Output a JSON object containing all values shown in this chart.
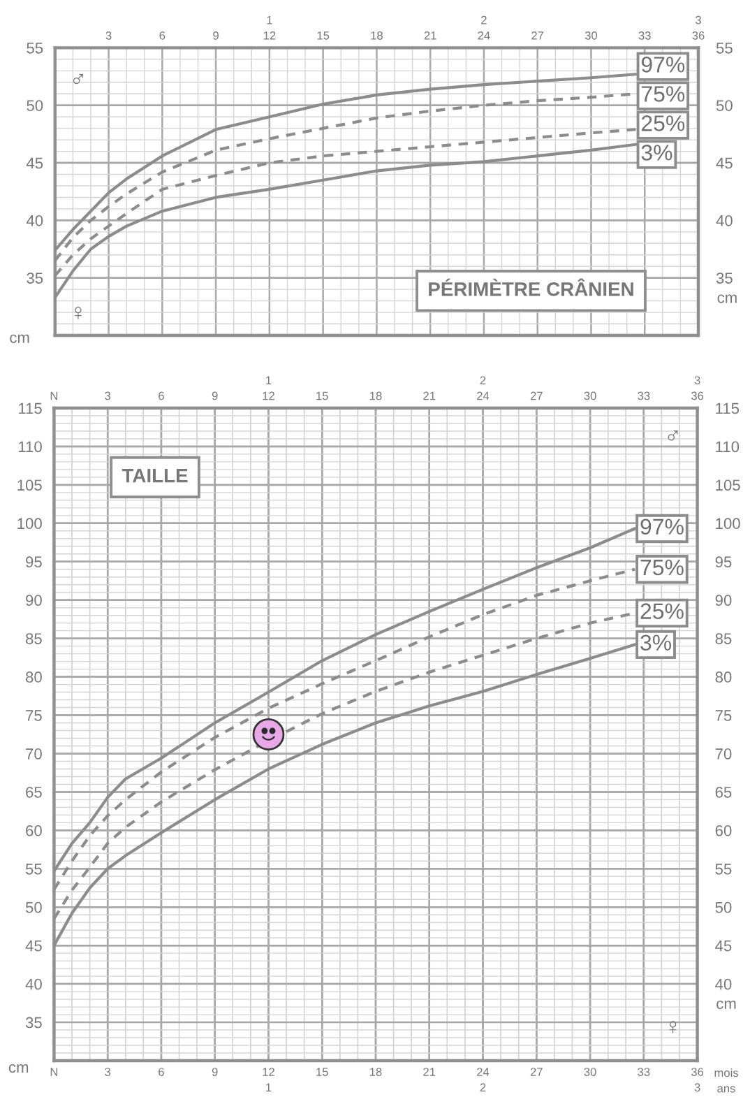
{
  "chart_data": [
    {
      "type": "line",
      "title": "PÉRIMÈTRE CRÂNIEN",
      "ylabel": "cm",
      "y2label": "cm",
      "grid": true,
      "legend": "right",
      "tick_labels": "y",
      "annotations": [
        "♂",
        "♀"
      ],
      "xlim": [
        0,
        36
      ],
      "x2lim": [
        0,
        36
      ],
      "x2ticks": [
        {
          "value": 1,
          "label": null
        },
        {
          "value": 2,
          "label": null
        },
        3,
        {
          "value": 4,
          "label": null
        },
        {
          "value": 5,
          "label": null
        },
        6,
        {
          "value": 7,
          "label": null
        },
        {
          "value": 8,
          "label": null
        },
        9,
        {
          "value": 10,
          "label": null
        },
        {
          "value": 11,
          "label": null
        },
        {
          "value": 12,
          "label": "1\n12"
        },
        {
          "value": 13,
          "label": null
        },
        {
          "value": 14,
          "label": null
        },
        15,
        {
          "value": 16,
          "label": null
        },
        {
          "value": 17,
          "label": null
        },
        18,
        {
          "value": 19,
          "label": null
        },
        {
          "value": 20,
          "label": null
        },
        21,
        {
          "value": 22,
          "label": null
        },
        {
          "value": 23,
          "label": null
        },
        {
          "value": 24,
          "label": "2\n24"
        },
        {
          "value": 25,
          "label": null
        },
        {
          "value": 26,
          "label": null
        },
        27,
        {
          "value": 28,
          "label": null
        },
        {
          "value": 29,
          "label": null
        },
        30,
        {
          "value": 31,
          "label": null
        },
        {
          "value": 32,
          "label": null
        },
        33,
        {
          "value": 34,
          "label": null
        },
        {
          "value": 35,
          "label": null
        },
        {
          "value": 36,
          "label": "3\n36"
        }
      ],
      "ylim": [
        30,
        55
      ],
      "yticks": [
        {
          "value": 31,
          "label": null
        },
        {
          "value": 32,
          "label": null
        },
        {
          "value": 33,
          "label": null
        },
        {
          "value": 34,
          "label": null
        },
        35,
        {
          "value": 36,
          "label": null
        },
        {
          "value": 37,
          "label": null
        },
        {
          "value": 38,
          "label": null
        },
        {
          "value": 39,
          "label": null
        },
        40,
        {
          "value": 41,
          "label": null
        },
        {
          "value": 42,
          "label": null
        },
        {
          "value": 43,
          "label": null
        },
        {
          "value": 44,
          "label": null
        },
        45,
        {
          "value": 46,
          "label": null
        },
        {
          "value": 47,
          "label": null
        },
        {
          "value": 48,
          "label": null
        },
        {
          "value": 49,
          "label": null
        },
        50,
        {
          "value": 51,
          "label": null
        },
        {
          "value": 52,
          "label": null
        },
        {
          "value": 53,
          "label": null
        },
        {
          "value": 54,
          "label": null
        },
        55
      ],
      "y2lim": [
        30,
        55
      ],
      "y2ticks": [
        35,
        40,
        45,
        50,
        55
      ],
      "series": [
        {
          "name": "97%",
          "color": "#8c8c8c",
          "line_style": "solid",
          "x": [
            0,
            1,
            2,
            3,
            4,
            6,
            9,
            12,
            15,
            18,
            21,
            24,
            27,
            30,
            32.5
          ],
          "values": [
            37.4,
            39.2,
            40.8,
            42.4,
            43.6,
            45.6,
            47.9,
            49.0,
            50.1,
            50.9,
            51.4,
            51.8,
            52.1,
            52.4,
            52.7
          ]
        },
        {
          "name": "75%",
          "color": "#8c8c8c",
          "line_style": "dashed",
          "x": [
            0,
            1,
            2,
            3,
            4,
            6,
            9,
            12,
            15,
            18,
            21,
            24,
            27,
            30,
            32.5
          ],
          "values": [
            36.5,
            38.5,
            40.0,
            41.2,
            42.3,
            44.2,
            46.1,
            47.1,
            48.0,
            48.9,
            49.5,
            50.0,
            50.4,
            50.7,
            51.0
          ]
        },
        {
          "name": "25%",
          "color": "#8c8c8c",
          "line_style": "dashed",
          "x": [
            0,
            1,
            2,
            3,
            4,
            6,
            9,
            12,
            15,
            18,
            21,
            24,
            27,
            30,
            32.5
          ],
          "values": [
            35.2,
            37.0,
            38.4,
            39.5,
            40.6,
            42.7,
            43.9,
            45.0,
            45.6,
            46.0,
            46.4,
            46.8,
            47.2,
            47.6,
            47.9
          ]
        },
        {
          "name": "3%",
          "color": "#8c8c8c",
          "line_style": "solid",
          "x": [
            0,
            1,
            2,
            3,
            4,
            6,
            9,
            12,
            15,
            18,
            21,
            24,
            27,
            30,
            32.5
          ],
          "values": [
            33.3,
            35.6,
            37.5,
            38.6,
            39.5,
            40.8,
            42.0,
            42.7,
            43.5,
            44.3,
            44.8,
            45.1,
            45.6,
            46.1,
            46.6
          ]
        }
      ]
    },
    {
      "type": "line",
      "title": "TAILLE",
      "xlabel": "mois\nans",
      "ylabel": "cm",
      "y2label": "cm",
      "grid": true,
      "legend": "right",
      "annotations": [
        "♂",
        "♀"
      ],
      "xlim": [
        0,
        36
      ],
      "xticks": [
        {
          "value": 0,
          "label": "N"
        },
        {
          "value": 1,
          "label": null
        },
        {
          "value": 2,
          "label": null
        },
        3,
        {
          "value": 4,
          "label": null
        },
        {
          "value": 5,
          "label": null
        },
        6,
        {
          "value": 7,
          "label": null
        },
        {
          "value": 8,
          "label": null
        },
        9,
        {
          "value": 10,
          "label": null
        },
        {
          "value": 11,
          "label": null
        },
        {
          "value": 12,
          "label": "12\n1"
        },
        {
          "value": 13,
          "label": null
        },
        {
          "value": 14,
          "label": null
        },
        15,
        {
          "value": 16,
          "label": null
        },
        {
          "value": 17,
          "label": null
        },
        18,
        {
          "value": 19,
          "label": null
        },
        {
          "value": 20,
          "label": null
        },
        21,
        {
          "value": 22,
          "label": null
        },
        {
          "value": 23,
          "label": null
        },
        {
          "value": 24,
          "label": "24\n2"
        },
        {
          "value": 25,
          "label": null
        },
        {
          "value": 26,
          "label": null
        },
        27,
        {
          "value": 28,
          "label": null
        },
        {
          "value": 29,
          "label": null
        },
        30,
        {
          "value": 31,
          "label": null
        },
        {
          "value": 32,
          "label": null
        },
        33,
        {
          "value": 34,
          "label": null
        },
        {
          "value": 35,
          "label": null
        },
        {
          "value": 36,
          "label": "36\n3"
        }
      ],
      "x2lim": [
        0,
        36
      ],
      "x2ticks": [
        {
          "value": 0,
          "label": "N"
        },
        {
          "value": 1,
          "label": null
        },
        {
          "value": 2,
          "label": null
        },
        3,
        {
          "value": 4,
          "label": null
        },
        {
          "value": 5,
          "label": null
        },
        6,
        {
          "value": 7,
          "label": null
        },
        {
          "value": 8,
          "label": null
        },
        9,
        {
          "value": 10,
          "label": null
        },
        {
          "value": 11,
          "label": null
        },
        {
          "value": 12,
          "label": "1\n12"
        },
        {
          "value": 13,
          "label": null
        },
        {
          "value": 14,
          "label": null
        },
        15,
        {
          "value": 16,
          "label": null
        },
        {
          "value": 17,
          "label": null
        },
        18,
        {
          "value": 19,
          "label": null
        },
        {
          "value": 20,
          "label": null
        },
        21,
        {
          "value": 22,
          "label": null
        },
        {
          "value": 23,
          "label": null
        },
        {
          "value": 24,
          "label": "2\n24"
        },
        {
          "value": 25,
          "label": null
        },
        {
          "value": 26,
          "label": null
        },
        27,
        {
          "value": 28,
          "label": null
        },
        {
          "value": 29,
          "label": null
        },
        30,
        {
          "value": 31,
          "label": null
        },
        {
          "value": 32,
          "label": null
        },
        33,
        {
          "value": 34,
          "label": null
        },
        {
          "value": 35,
          "label": null
        },
        {
          "value": 36,
          "label": "3\n36"
        }
      ],
      "ylim": [
        30,
        115
      ],
      "yticks": [
        {
          "value": 31,
          "label": null
        },
        {
          "value": 32,
          "label": null
        },
        {
          "value": 33,
          "label": null
        },
        {
          "value": 34,
          "label": null
        },
        35,
        {
          "value": 36,
          "label": null
        },
        {
          "value": 37,
          "label": null
        },
        {
          "value": 38,
          "label": null
        },
        {
          "value": 39,
          "label": null
        },
        40,
        {
          "value": 41,
          "label": null
        },
        {
          "value": 42,
          "label": null
        },
        {
          "value": 43,
          "label": null
        },
        {
          "value": 44,
          "label": null
        },
        45,
        {
          "value": 46,
          "label": null
        },
        {
          "value": 47,
          "label": null
        },
        {
          "value": 48,
          "label": null
        },
        {
          "value": 49,
          "label": null
        },
        50,
        {
          "value": 51,
          "label": null
        },
        {
          "value": 52,
          "label": null
        },
        {
          "value": 53,
          "label": null
        },
        {
          "value": 54,
          "label": null
        },
        55,
        {
          "value": 56,
          "label": null
        },
        {
          "value": 57,
          "label": null
        },
        {
          "value": 58,
          "label": null
        },
        {
          "value": 59,
          "label": null
        },
        60,
        {
          "value": 61,
          "label": null
        },
        {
          "value": 62,
          "label": null
        },
        {
          "value": 63,
          "label": null
        },
        {
          "value": 64,
          "label": null
        },
        65,
        {
          "value": 66,
          "label": null
        },
        {
          "value": 67,
          "label": null
        },
        {
          "value": 68,
          "label": null
        },
        {
          "value": 69,
          "label": null
        },
        70,
        {
          "value": 71,
          "label": null
        },
        {
          "value": 72,
          "label": null
        },
        {
          "value": 73,
          "label": null
        },
        {
          "value": 74,
          "label": null
        },
        75,
        {
          "value": 76,
          "label": null
        },
        {
          "value": 77,
          "label": null
        },
        {
          "value": 78,
          "label": null
        },
        {
          "value": 79,
          "label": null
        },
        80,
        {
          "value": 81,
          "label": null
        },
        {
          "value": 82,
          "label": null
        },
        {
          "value": 83,
          "label": null
        },
        {
          "value": 84,
          "label": null
        },
        85,
        {
          "value": 86,
          "label": null
        },
        {
          "value": 87,
          "label": null
        },
        {
          "value": 88,
          "label": null
        },
        {
          "value": 89,
          "label": null
        },
        90,
        {
          "value": 91,
          "label": null
        },
        {
          "value": 92,
          "label": null
        },
        {
          "value": 93,
          "label": null
        },
        {
          "value": 94,
          "label": null
        },
        95,
        {
          "value": 96,
          "label": null
        },
        {
          "value": 97,
          "label": null
        },
        {
          "value": 98,
          "label": null
        },
        {
          "value": 99,
          "label": null
        },
        100,
        {
          "value": 101,
          "label": null
        },
        {
          "value": 102,
          "label": null
        },
        {
          "value": 103,
          "label": null
        },
        {
          "value": 104,
          "label": null
        },
        105,
        {
          "value": 106,
          "label": null
        },
        {
          "value": 107,
          "label": null
        },
        {
          "value": 108,
          "label": null
        },
        {
          "value": 109,
          "label": null
        },
        110,
        {
          "value": 111,
          "label": null
        },
        {
          "value": 112,
          "label": null
        },
        {
          "value": 113,
          "label": null
        },
        {
          "value": 114,
          "label": null
        },
        115
      ],
      "y2lim": [
        30,
        115
      ],
      "y2ticks": [
        40,
        45,
        50,
        55,
        60,
        65,
        70,
        75,
        80,
        85,
        90,
        95,
        100,
        105,
        110,
        115
      ],
      "series": [
        {
          "name": "97%",
          "color": "#8c8c8c",
          "line_style": "solid",
          "x": [
            0,
            1,
            2,
            3,
            4,
            6,
            9,
            12,
            15,
            18,
            21,
            24,
            27,
            30,
            32.5
          ],
          "values": [
            54.7,
            58.3,
            61.0,
            64.3,
            66.7,
            69.4,
            74.0,
            78.0,
            82.1,
            85.5,
            88.5,
            91.4,
            94.2,
            96.8,
            99.3
          ]
        },
        {
          "name": "75%",
          "color": "#8c8c8c",
          "line_style": "dashed",
          "x": [
            0,
            1,
            2,
            3,
            4,
            6,
            9,
            12,
            15,
            18,
            21,
            24,
            27,
            30,
            32.5
          ],
          "values": [
            52.3,
            56.0,
            59.3,
            61.9,
            64.0,
            67.6,
            72.1,
            75.9,
            79.1,
            82.1,
            85.2,
            88.1,
            90.6,
            92.5,
            94.0
          ]
        },
        {
          "name": "25%",
          "color": "#8c8c8c",
          "line_style": "dashed",
          "x": [
            0,
            1,
            2,
            3,
            4,
            6,
            9,
            12,
            15,
            18,
            21,
            24,
            27,
            30,
            32.5
          ],
          "values": [
            48.5,
            52.2,
            55.2,
            58.3,
            60.4,
            63.7,
            67.9,
            71.7,
            75.2,
            78.1,
            80.6,
            82.8,
            85.0,
            87.0,
            88.3
          ]
        },
        {
          "name": "3%",
          "color": "#8c8c8c",
          "line_style": "solid",
          "x": [
            0,
            1,
            2,
            3,
            4,
            6,
            9,
            12,
            15,
            18,
            21,
            24,
            27,
            30,
            32.5
          ],
          "values": [
            45.0,
            49.2,
            52.5,
            55.0,
            56.7,
            59.7,
            64.0,
            68.0,
            71.2,
            74.0,
            76.2,
            78.1,
            80.3,
            82.4,
            84.2
          ]
        },
        {
          "type": "scatter",
          "marker": "circle",
          "color": "#e8a8e8",
          "x": [
            12
          ],
          "values": [
            72.5
          ]
        }
      ]
    }
  ]
}
